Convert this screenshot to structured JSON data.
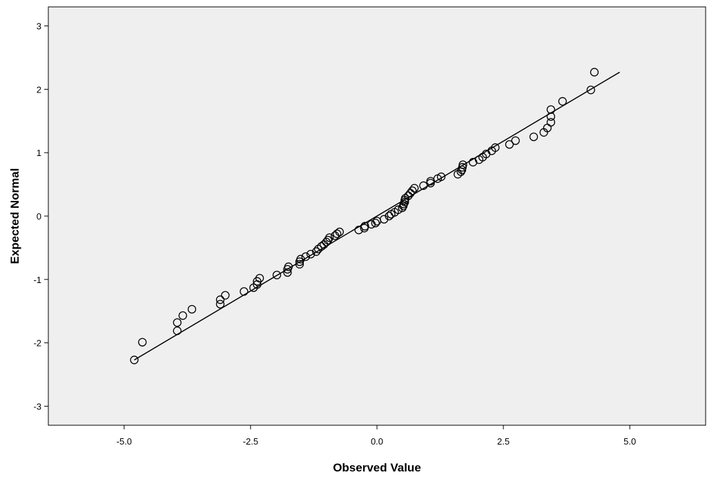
{
  "chart_data": {
    "type": "scatter",
    "title": "",
    "xlabel": "Observed Value",
    "ylabel": "Expected Normal",
    "xlim": [
      -6.5,
      6.5
    ],
    "ylim": [
      -3.3,
      3.3
    ],
    "x_ticks": [
      {
        "value": -5.0,
        "label": "-5.0"
      },
      {
        "value": -2.5,
        "label": "-2.5"
      },
      {
        "value": 0.0,
        "label": "0.0"
      },
      {
        "value": 2.5,
        "label": "2.5"
      },
      {
        "value": 5.0,
        "label": "5.0"
      }
    ],
    "y_ticks": [
      {
        "value": 3,
        "label": "3"
      },
      {
        "value": 2,
        "label": "2"
      },
      {
        "value": 1,
        "label": "1"
      },
      {
        "value": 0,
        "label": "0"
      },
      {
        "value": -1,
        "label": "-1"
      },
      {
        "value": -2,
        "label": "-2"
      },
      {
        "value": -3,
        "label": "-3"
      }
    ],
    "grid": false,
    "legend": "none",
    "colors": {
      "plot_background": "#efefef",
      "marker_stroke": "#000000",
      "line": "#000000"
    },
    "reference_line": {
      "x1": -4.8,
      "y1": -2.27,
      "x2": 4.8,
      "y2": 2.27
    },
    "points": [
      {
        "x": -4.8,
        "y": -2.27
      },
      {
        "x": -4.64,
        "y": -1.99
      },
      {
        "x": -3.95,
        "y": -1.81
      },
      {
        "x": -3.95,
        "y": -1.68
      },
      {
        "x": -3.84,
        "y": -1.57
      },
      {
        "x": -3.66,
        "y": -1.47
      },
      {
        "x": -3.1,
        "y": -1.39
      },
      {
        "x": -3.1,
        "y": -1.32
      },
      {
        "x": -3.0,
        "y": -1.25
      },
      {
        "x": -2.63,
        "y": -1.19
      },
      {
        "x": -2.44,
        "y": -1.13
      },
      {
        "x": -2.37,
        "y": -1.08
      },
      {
        "x": -2.37,
        "y": -1.03
      },
      {
        "x": -2.32,
        "y": -0.98
      },
      {
        "x": -1.98,
        "y": -0.93
      },
      {
        "x": -1.77,
        "y": -0.89
      },
      {
        "x": -1.77,
        "y": -0.84
      },
      {
        "x": -1.75,
        "y": -0.8
      },
      {
        "x": -1.53,
        "y": -0.76
      },
      {
        "x": -1.53,
        "y": -0.72
      },
      {
        "x": -1.51,
        "y": -0.68
      },
      {
        "x": -1.41,
        "y": -0.64
      },
      {
        "x": -1.31,
        "y": -0.6
      },
      {
        "x": -1.2,
        "y": -0.56
      },
      {
        "x": -1.16,
        "y": -0.52
      },
      {
        "x": -1.1,
        "y": -0.48
      },
      {
        "x": -1.05,
        "y": -0.45
      },
      {
        "x": -1.0,
        "y": -0.41
      },
      {
        "x": -0.97,
        "y": -0.38
      },
      {
        "x": -0.94,
        "y": -0.34
      },
      {
        "x": -0.83,
        "y": -0.31
      },
      {
        "x": -0.79,
        "y": -0.28
      },
      {
        "x": -0.74,
        "y": -0.25
      },
      {
        "x": -0.36,
        "y": -0.22
      },
      {
        "x": -0.25,
        "y": -0.19
      },
      {
        "x": -0.24,
        "y": -0.16
      },
      {
        "x": -0.11,
        "y": -0.13
      },
      {
        "x": -0.03,
        "y": -0.11
      },
      {
        "x": 0.0,
        "y": -0.08
      },
      {
        "x": 0.14,
        "y": -0.05
      },
      {
        "x": 0.24,
        "y": 0.0
      },
      {
        "x": 0.28,
        "y": 0.03
      },
      {
        "x": 0.35,
        "y": 0.06
      },
      {
        "x": 0.42,
        "y": 0.1
      },
      {
        "x": 0.5,
        "y": 0.13
      },
      {
        "x": 0.52,
        "y": 0.16
      },
      {
        "x": 0.53,
        "y": 0.19
      },
      {
        "x": 0.55,
        "y": 0.22
      },
      {
        "x": 0.55,
        "y": 0.25
      },
      {
        "x": 0.56,
        "y": 0.28
      },
      {
        "x": 0.62,
        "y": 0.32
      },
      {
        "x": 0.66,
        "y": 0.36
      },
      {
        "x": 0.7,
        "y": 0.4
      },
      {
        "x": 0.74,
        "y": 0.44
      },
      {
        "x": 0.92,
        "y": 0.48
      },
      {
        "x": 1.06,
        "y": 0.52
      },
      {
        "x": 1.06,
        "y": 0.55
      },
      {
        "x": 1.2,
        "y": 0.59
      },
      {
        "x": 1.27,
        "y": 0.62
      },
      {
        "x": 1.6,
        "y": 0.66
      },
      {
        "x": 1.66,
        "y": 0.7
      },
      {
        "x": 1.68,
        "y": 0.73
      },
      {
        "x": 1.69,
        "y": 0.77
      },
      {
        "x": 1.7,
        "y": 0.81
      },
      {
        "x": 1.9,
        "y": 0.85
      },
      {
        "x": 2.02,
        "y": 0.89
      },
      {
        "x": 2.09,
        "y": 0.93
      },
      {
        "x": 2.16,
        "y": 0.98
      },
      {
        "x": 2.27,
        "y": 1.03
      },
      {
        "x": 2.34,
        "y": 1.08
      },
      {
        "x": 2.62,
        "y": 1.13
      },
      {
        "x": 2.74,
        "y": 1.19
      },
      {
        "x": 3.1,
        "y": 1.25
      },
      {
        "x": 3.3,
        "y": 1.32
      },
      {
        "x": 3.37,
        "y": 1.39
      },
      {
        "x": 3.44,
        "y": 1.48
      },
      {
        "x": 3.44,
        "y": 1.57
      },
      {
        "x": 3.44,
        "y": 1.68
      },
      {
        "x": 3.67,
        "y": 1.81
      },
      {
        "x": 4.23,
        "y": 1.99
      },
      {
        "x": 4.3,
        "y": 2.27
      }
    ]
  }
}
